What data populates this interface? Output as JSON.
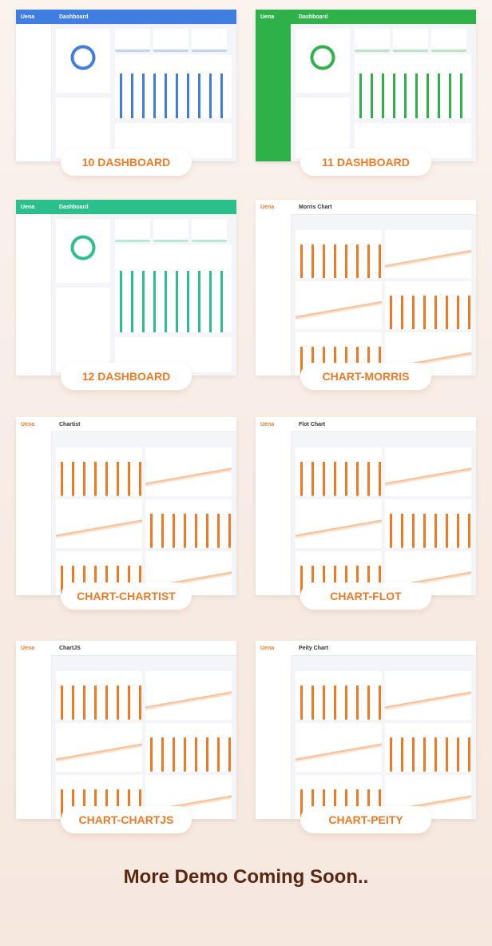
{
  "brand": "Uena",
  "cards": [
    {
      "label": "10 DASHBOARD",
      "title": "Dashboard",
      "theme": "#3f7de0",
      "accent": "#3f7de0",
      "kind": "dashboard"
    },
    {
      "label": "11 DASHBOARD",
      "title": "Dashboard",
      "theme": "#2fb14a",
      "accent": "#2fb14a",
      "kind": "dashboard"
    },
    {
      "label": "12 DASHBOARD",
      "title": "Dashboard",
      "theme": "#2bbf8e",
      "accent": "#2bbf8e",
      "kind": "dashboard"
    },
    {
      "label": "CHART-MORRIS",
      "title": "Morris Chart",
      "theme": "#ffffff",
      "accent": "#f07a24",
      "kind": "charts"
    },
    {
      "label": "CHART-CHARTIST",
      "title": "Chartist",
      "theme": "#ffffff",
      "accent": "#f07a24",
      "kind": "charts"
    },
    {
      "label": "CHART-FLOT",
      "title": "Flot Chart",
      "theme": "#ffffff",
      "accent": "#f07a24",
      "kind": "charts"
    },
    {
      "label": "CHART-CHARTJS",
      "title": "ChartJS",
      "theme": "#ffffff",
      "accent": "#f07a24",
      "kind": "charts"
    },
    {
      "label": "CHART-PEITY",
      "title": "Peity Chart",
      "theme": "#ffffff",
      "accent": "#f07a24",
      "kind": "charts"
    }
  ],
  "footer": "More Demo Coming Soon.."
}
